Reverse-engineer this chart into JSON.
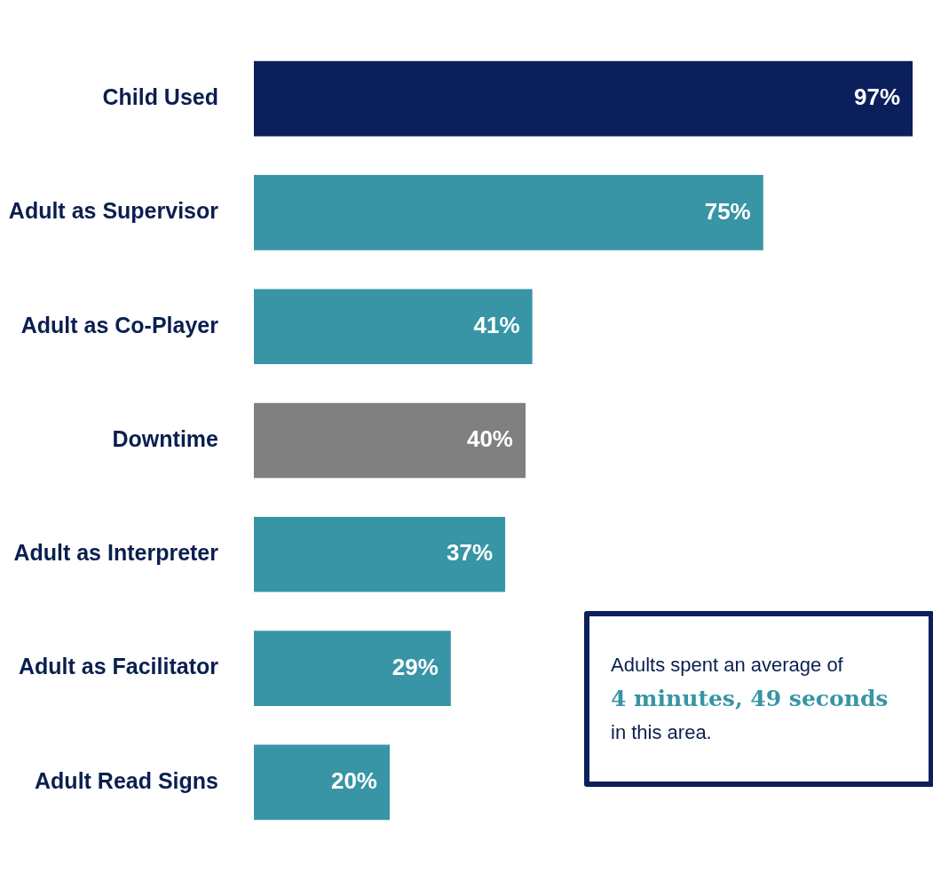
{
  "chart_data": {
    "type": "bar",
    "orientation": "horizontal",
    "categories": [
      "Child Used",
      "Adult as Supervisor",
      "Adult as Co-Player",
      "Downtime",
      "Adult as Interpreter",
      "Adult as Facilitator",
      "Adult Read Signs"
    ],
    "values": [
      97,
      75,
      41,
      40,
      37,
      29,
      20
    ],
    "colors": [
      "#0a1f5c",
      "#3795a6",
      "#3795a6",
      "#808080",
      "#3795a6",
      "#3795a6",
      "#3795a6"
    ],
    "value_labels": [
      "97%",
      "75%",
      "41%",
      "40%",
      "37%",
      "29%",
      "20%"
    ],
    "annotations": [
      "Adults spent an average of",
      "4 minutes, 49 seconds",
      "in this area."
    ],
    "grid": false,
    "legend": false,
    "tick_labels": "y"
  }
}
